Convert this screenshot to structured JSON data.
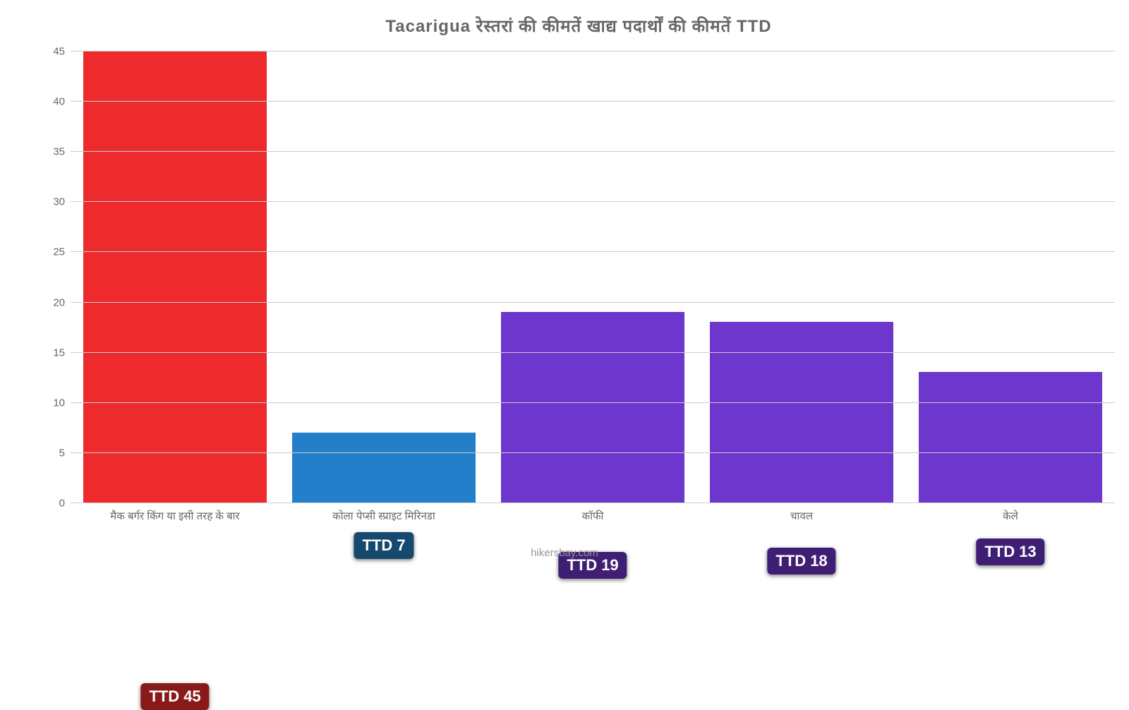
{
  "chart": {
    "type": "bar",
    "title": "Tacarigua रेस्तरां    की    कीमतें    खाद्य    पदार्थों    की    कीमतें    TTD",
    "title_fontsize": 24,
    "title_color": "#666666",
    "background_color": "#ffffff",
    "grid_color": "#cccccc",
    "axis_label_color": "#666666",
    "axis_label_fontsize": 15,
    "bar_width": 0.88,
    "ylim": [
      0,
      45
    ],
    "ytick_step": 5,
    "yticks": [
      0,
      5,
      10,
      15,
      20,
      25,
      30,
      35,
      40,
      45
    ],
    "currency_prefix": "TTD ",
    "value_label_fontsize": 22,
    "value_label_text_color": "#ffffff",
    "source": "hikersbay.com",
    "source_color": "#999999",
    "categories": [
      "मैक बर्गर किंग या इसी तरह के बार",
      "कोला पेप्सी स्प्राइट मिरिनडा",
      "कॉफी",
      "चावल",
      "केले"
    ],
    "values": [
      45,
      7,
      19,
      18,
      13
    ],
    "bar_colors": [
      "#ee2b2c",
      "#247fca",
      "#6d36cd",
      "#6d36cd",
      "#6d36cd"
    ],
    "value_label_bg_colors": [
      "#8a1919",
      "#15496e",
      "#3f1f74",
      "#3f1f74",
      "#3f1f74"
    ],
    "value_label_offset_pct": [
      -46,
      -80,
      -40,
      -40,
      -48
    ]
  }
}
